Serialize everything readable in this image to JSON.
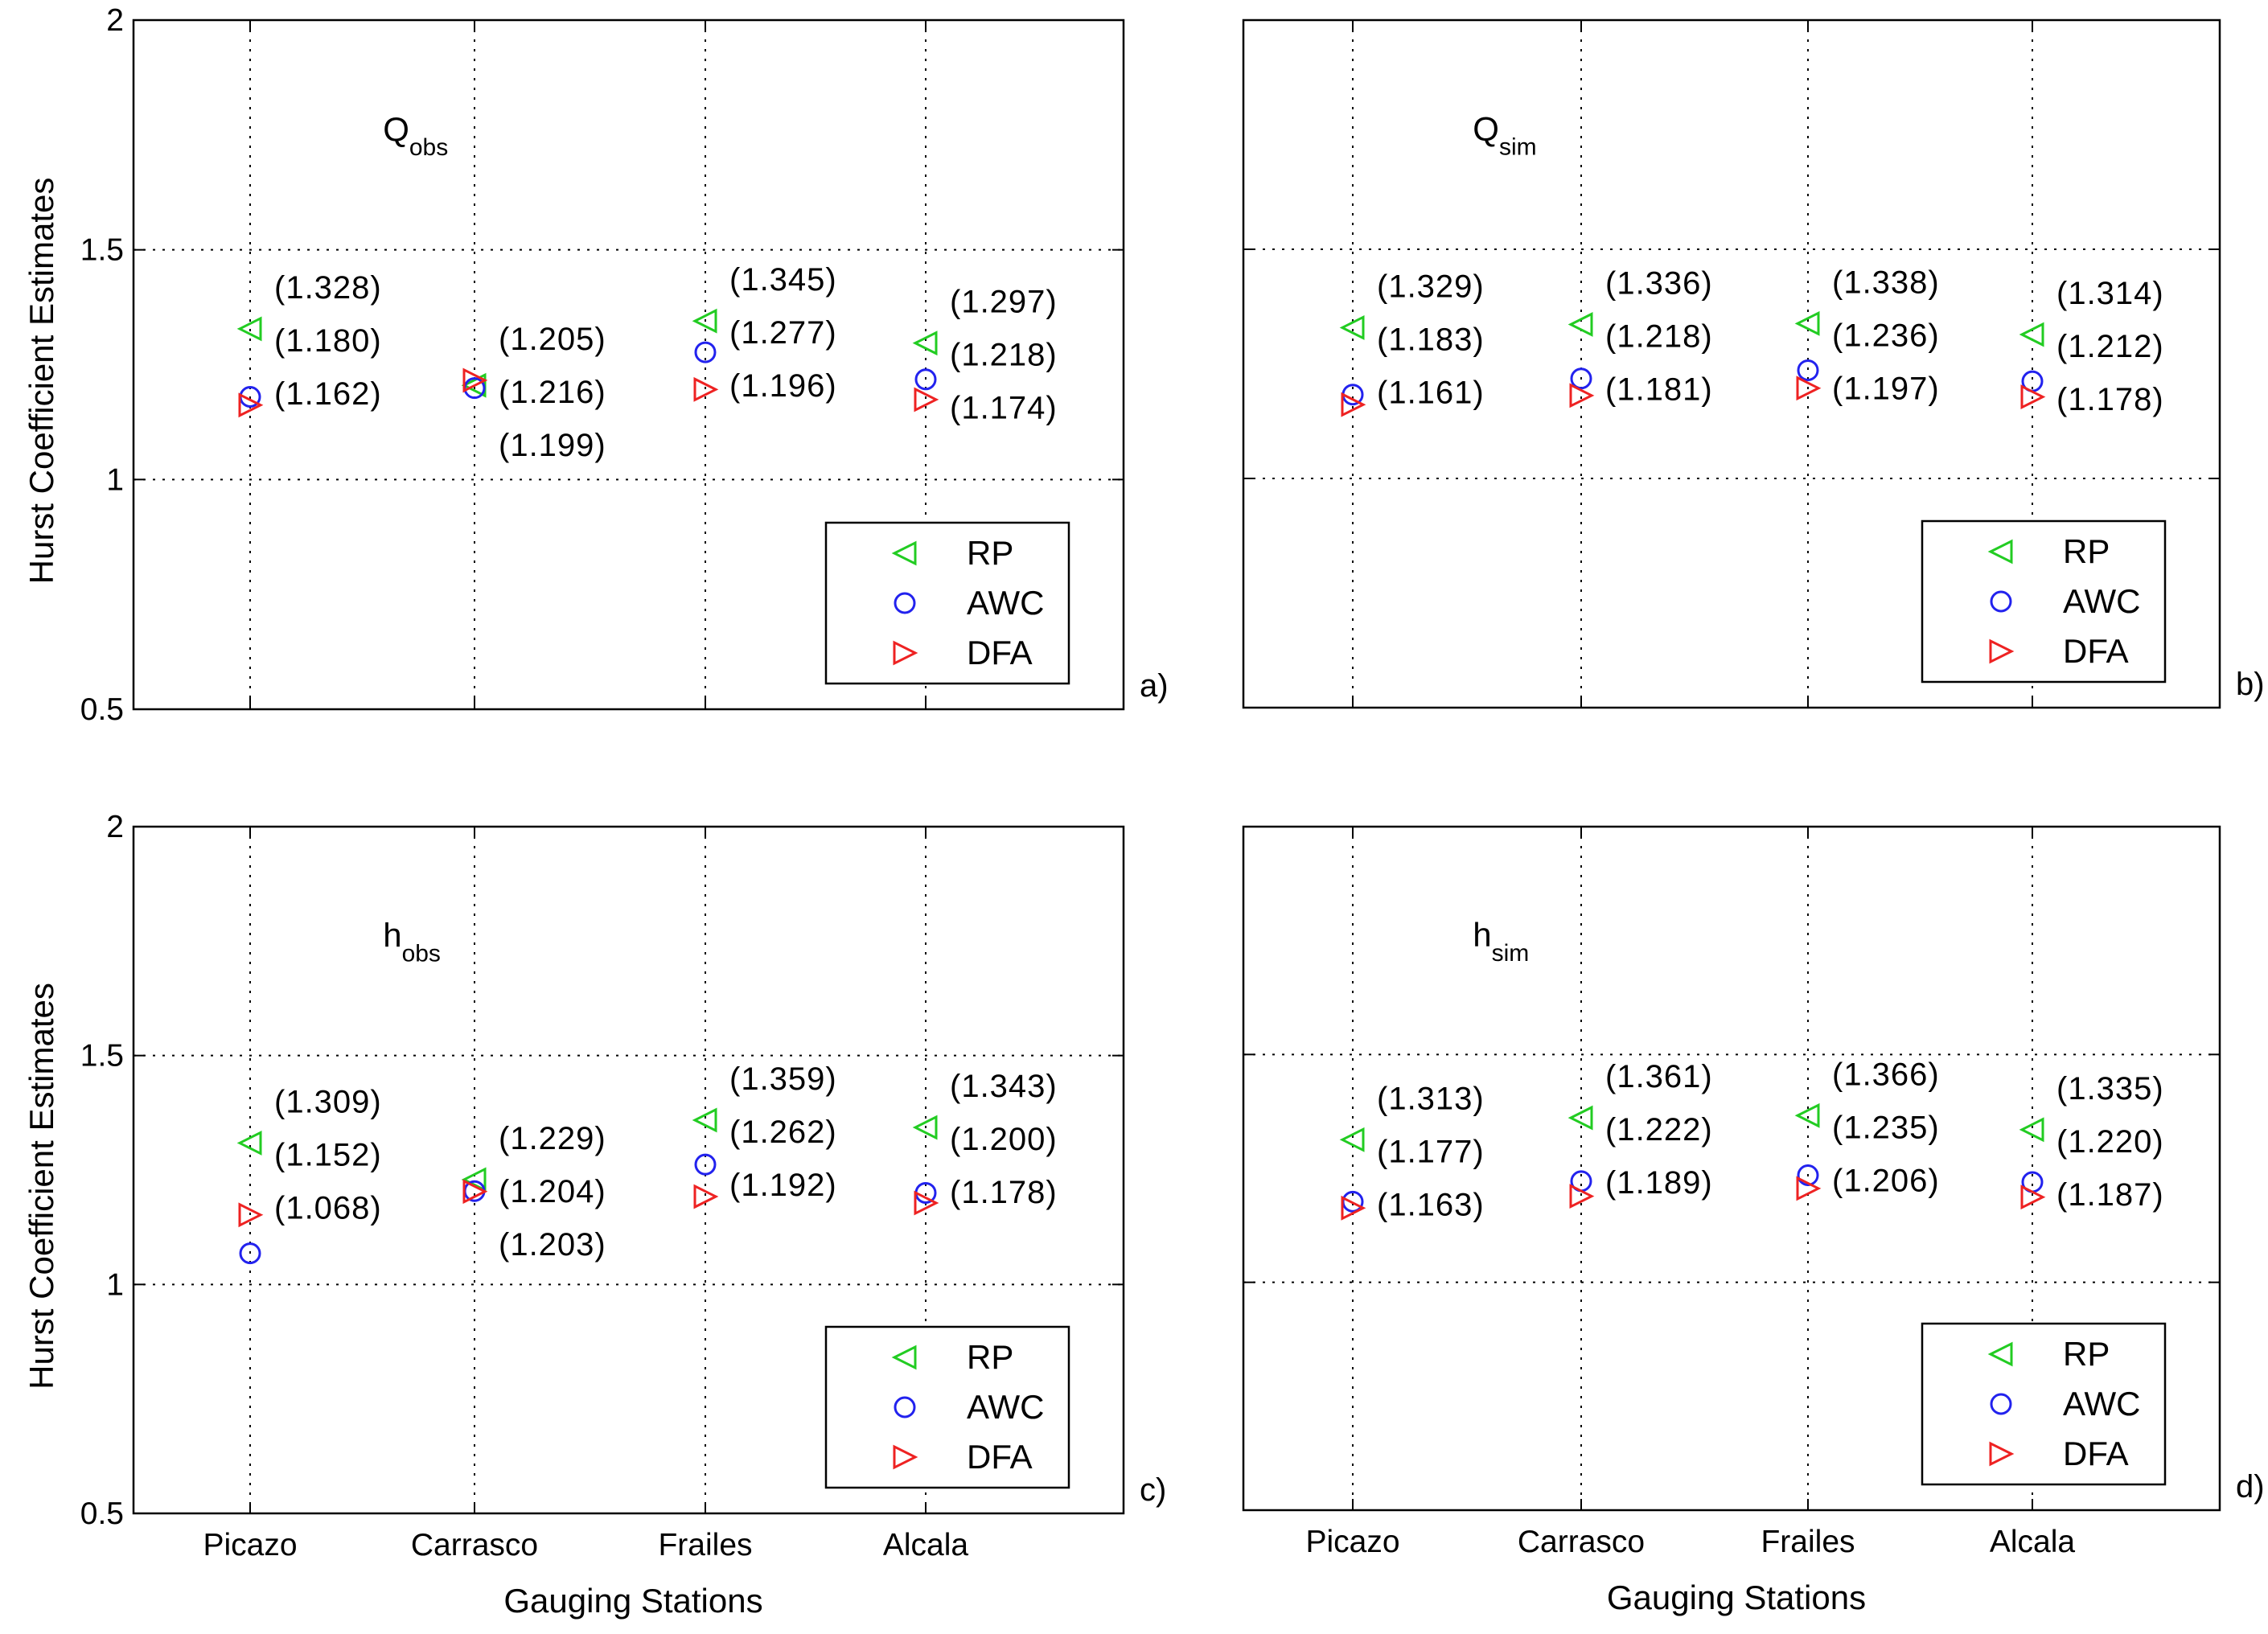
{
  "chart_data": [
    {
      "panel": "a)",
      "type": "scatter",
      "title": {
        "main": "Q",
        "sub": "obs"
      },
      "xlabel": "",
      "ylabel": "Hurst Coefficient Estimates",
      "categories": [
        "Picazo",
        "Carrasco",
        "Frailes",
        "Alcala"
      ],
      "show_xticklabels": false,
      "show_ylabel": true,
      "ylim": [
        0.5,
        2
      ],
      "yticks": [
        "0.5",
        "1",
        "1.5",
        "2"
      ],
      "grid": true,
      "legend": {
        "position": "bottom-right",
        "entries": [
          "RP",
          "AWC",
          "DFA"
        ]
      },
      "series": [
        {
          "name": "RP",
          "marker": "triangle-left",
          "color": "#22cc22",
          "values": [
            1.328,
            1.205,
            1.345,
            1.297
          ]
        },
        {
          "name": "AWC",
          "marker": "circle",
          "color": "#2222ee",
          "values": [
            1.18,
            1.199,
            1.277,
            1.218
          ]
        },
        {
          "name": "DFA",
          "marker": "triangle-right",
          "color": "#ee2222",
          "values": [
            1.162,
            1.216,
            1.196,
            1.174
          ]
        }
      ],
      "annotations": [
        [
          "(1.328)",
          "(1.180)",
          "(1.162)"
        ],
        [
          "(1.205)",
          "(1.216)",
          "(1.199)"
        ],
        [
          "(1.345)",
          "(1.277)",
          "(1.196)"
        ],
        [
          "(1.297)",
          "(1.218)",
          "(1.174)"
        ]
      ]
    },
    {
      "panel": "b)",
      "type": "scatter",
      "title": {
        "main": "Q",
        "sub": "sim"
      },
      "xlabel": "",
      "ylabel": "",
      "categories": [
        "Picazo",
        "Carrasco",
        "Frailes",
        "Alcala"
      ],
      "show_xticklabels": false,
      "show_ylabel": false,
      "ylim": [
        0.5,
        2
      ],
      "yticks": [],
      "grid": true,
      "legend": {
        "position": "bottom-right",
        "entries": [
          "RP",
          "AWC",
          "DFA"
        ]
      },
      "series": [
        {
          "name": "RP",
          "marker": "triangle-left",
          "color": "#22cc22",
          "values": [
            1.329,
            1.336,
            1.338,
            1.314
          ]
        },
        {
          "name": "AWC",
          "marker": "circle",
          "color": "#2222ee",
          "values": [
            1.183,
            1.218,
            1.236,
            1.212
          ]
        },
        {
          "name": "DFA",
          "marker": "triangle-right",
          "color": "#ee2222",
          "values": [
            1.161,
            1.181,
            1.197,
            1.178
          ]
        }
      ],
      "annotations": [
        [
          "(1.329)",
          "(1.183)",
          "(1.161)"
        ],
        [
          "(1.336)",
          "(1.218)",
          "(1.181)"
        ],
        [
          "(1.338)",
          "(1.236)",
          "(1.197)"
        ],
        [
          "(1.314)",
          "(1.212)",
          "(1.178)"
        ]
      ]
    },
    {
      "panel": "c)",
      "type": "scatter",
      "title": {
        "main": "h",
        "sub": "obs"
      },
      "xlabel": "Gauging Stations",
      "ylabel": "Hurst Coefficient Estimates",
      "categories": [
        "Picazo",
        "Carrasco",
        "Frailes",
        "Alcala"
      ],
      "show_xticklabels": true,
      "show_ylabel": true,
      "ylim": [
        0.5,
        2
      ],
      "yticks": [
        "0.5",
        "1",
        "1.5",
        "2"
      ],
      "grid": true,
      "legend": {
        "position": "bottom-right",
        "entries": [
          "RP",
          "AWC",
          "DFA"
        ]
      },
      "series": [
        {
          "name": "RP",
          "marker": "triangle-left",
          "color": "#22cc22",
          "values": [
            1.309,
            1.229,
            1.359,
            1.343
          ]
        },
        {
          "name": "AWC",
          "marker": "circle",
          "color": "#2222ee",
          "values": [
            1.068,
            1.204,
            1.262,
            1.2
          ]
        },
        {
          "name": "DFA",
          "marker": "triangle-right",
          "color": "#ee2222",
          "values": [
            1.152,
            1.203,
            1.192,
            1.178
          ]
        }
      ],
      "annotations": [
        [
          "(1.309)",
          "(1.152)",
          "(1.068)"
        ],
        [
          "(1.229)",
          "(1.204)",
          "(1.203)"
        ],
        [
          "(1.359)",
          "(1.262)",
          "(1.192)"
        ],
        [
          "(1.343)",
          "(1.200)",
          "(1.178)"
        ]
      ]
    },
    {
      "panel": "d)",
      "type": "scatter",
      "title": {
        "main": "h",
        "sub": "sim"
      },
      "xlabel": "Gauging Stations",
      "ylabel": "",
      "categories": [
        "Picazo",
        "Carrasco",
        "Frailes",
        "Alcala"
      ],
      "show_xticklabels": true,
      "show_ylabel": false,
      "ylim": [
        0.5,
        2
      ],
      "yticks": [],
      "grid": true,
      "legend": {
        "position": "bottom-right",
        "entries": [
          "RP",
          "AWC",
          "DFA"
        ]
      },
      "series": [
        {
          "name": "RP",
          "marker": "triangle-left",
          "color": "#22cc22",
          "values": [
            1.313,
            1.361,
            1.366,
            1.335
          ]
        },
        {
          "name": "AWC",
          "marker": "circle",
          "color": "#2222ee",
          "values": [
            1.177,
            1.222,
            1.235,
            1.22
          ]
        },
        {
          "name": "DFA",
          "marker": "triangle-right",
          "color": "#ee2222",
          "values": [
            1.163,
            1.189,
            1.206,
            1.187
          ]
        }
      ],
      "annotations": [
        [
          "(1.313)",
          "(1.177)",
          "(1.163)"
        ],
        [
          "(1.361)",
          "(1.222)",
          "(1.189)"
        ],
        [
          "(1.366)",
          "(1.235)",
          "(1.206)"
        ],
        [
          "(1.335)",
          "(1.220)",
          "(1.187)"
        ]
      ]
    }
  ]
}
